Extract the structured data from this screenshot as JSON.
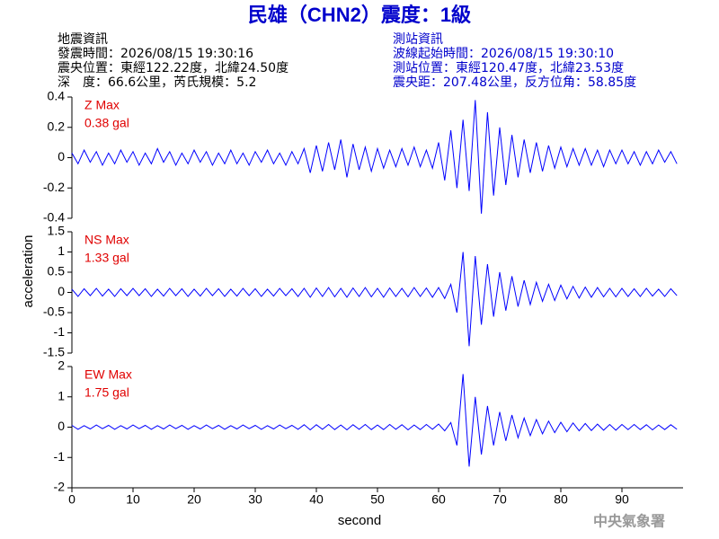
{
  "header": {
    "title": "民雄（CHN2）震度：1級",
    "quake": [
      "地震資訊",
      "發震時間：2026/08/15 19:30:16",
      "震央位置：東經122.22度，北緯24.50度",
      "深　度：66.6公里，芮氏規模：5.2"
    ],
    "station": [
      "測站資訊",
      "波線起始時間：2026/08/15 19:30:10",
      "測站位置：東經120.47度，北緯23.53度",
      "震央距：207.48公里，反方位角：58.85度"
    ],
    "footer": "中央氣象署"
  },
  "chart_data": {
    "type": "line",
    "xlabel": "second",
    "ylabel": "acceleration",
    "xlim": [
      0,
      100
    ],
    "xticks": [
      0,
      10,
      20,
      30,
      40,
      50,
      60,
      70,
      80,
      90
    ],
    "x": [
      0,
      1,
      2,
      3,
      4,
      5,
      6,
      7,
      8,
      9,
      10,
      11,
      12,
      13,
      14,
      15,
      16,
      17,
      18,
      19,
      20,
      21,
      22,
      23,
      24,
      25,
      26,
      27,
      28,
      29,
      30,
      31,
      32,
      33,
      34,
      35,
      36,
      37,
      38,
      39,
      40,
      41,
      42,
      43,
      44,
      45,
      46,
      47,
      48,
      49,
      50,
      51,
      52,
      53,
      54,
      55,
      56,
      57,
      58,
      59,
      60,
      61,
      62,
      63,
      64,
      65,
      66,
      67,
      68,
      69,
      70,
      71,
      72,
      73,
      74,
      75,
      76,
      77,
      78,
      79,
      80,
      81,
      82,
      83,
      84,
      85,
      86,
      87,
      88,
      89,
      90,
      91,
      92,
      93,
      94,
      95,
      96,
      97,
      98,
      99
    ],
    "series": [
      {
        "name": "Z Max",
        "label": "0.38 gal",
        "color": "#0000ff",
        "ylim": [
          -0.4,
          0.4
        ],
        "yticks": [
          -0.4,
          -0.2,
          0,
          0.2,
          0.4
        ],
        "values": [
          0.03,
          -0.04,
          0.05,
          -0.03,
          0.04,
          -0.05,
          0.03,
          -0.04,
          0.05,
          -0.03,
          0.04,
          -0.05,
          0.03,
          -0.04,
          0.06,
          -0.03,
          0.04,
          -0.05,
          0.03,
          -0.04,
          0.05,
          -0.03,
          0.04,
          -0.05,
          0.03,
          -0.04,
          0.05,
          -0.04,
          0.03,
          -0.05,
          0.04,
          -0.03,
          0.05,
          -0.04,
          0.03,
          -0.05,
          0.04,
          -0.04,
          0.06,
          -0.1,
          0.08,
          -0.09,
          0.1,
          -0.08,
          0.12,
          -0.13,
          0.09,
          -0.08,
          0.07,
          -0.09,
          0.06,
          -0.07,
          0.05,
          -0.06,
          0.06,
          -0.05,
          0.07,
          -0.06,
          0.05,
          -0.07,
          0.1,
          -0.15,
          0.18,
          -0.2,
          0.25,
          -0.22,
          0.38,
          -0.37,
          0.3,
          -0.25,
          0.2,
          -0.18,
          0.15,
          -0.13,
          0.12,
          -0.1,
          0.1,
          -0.09,
          0.08,
          -0.07,
          0.07,
          -0.06,
          0.06,
          -0.05,
          0.06,
          -0.05,
          0.05,
          -0.06,
          0.05,
          -0.04,
          0.05,
          -0.04,
          0.04,
          -0.05,
          0.04,
          -0.04,
          0.05,
          -0.03,
          0.04,
          -0.04
        ]
      },
      {
        "name": "NS Max",
        "label": "1.33 gal",
        "color": "#0000ff",
        "ylim": [
          -1.5,
          1.5
        ],
        "yticks": [
          -1.5,
          -1,
          -0.5,
          0,
          0.5,
          1,
          1.5
        ],
        "values": [
          0.08,
          -0.1,
          0.09,
          -0.08,
          0.1,
          -0.09,
          0.08,
          -0.1,
          0.09,
          -0.08,
          0.1,
          -0.08,
          0.09,
          -0.1,
          0.08,
          -0.09,
          0.1,
          -0.08,
          0.09,
          -0.1,
          0.08,
          -0.09,
          0.1,
          -0.08,
          0.09,
          -0.1,
          0.08,
          -0.09,
          0.1,
          -0.08,
          0.09,
          -0.1,
          0.08,
          -0.09,
          0.1,
          -0.08,
          0.09,
          -0.1,
          0.1,
          -0.12,
          0.11,
          -0.1,
          0.12,
          -0.11,
          0.1,
          -0.12,
          0.11,
          -0.1,
          0.12,
          -0.11,
          0.1,
          -0.12,
          0.11,
          -0.1,
          0.1,
          -0.11,
          0.12,
          -0.1,
          0.11,
          -0.12,
          0.12,
          -0.15,
          0.2,
          -0.5,
          1.0,
          -1.33,
          0.9,
          -0.8,
          0.7,
          -0.6,
          0.5,
          -0.45,
          0.4,
          -0.35,
          0.3,
          -0.3,
          0.25,
          -0.22,
          0.2,
          -0.2,
          0.18,
          -0.16,
          0.15,
          -0.14,
          0.13,
          -0.12,
          0.12,
          -0.11,
          0.1,
          -0.11,
          0.1,
          -0.1,
          0.09,
          -0.1,
          0.1,
          -0.09,
          0.08,
          -0.1,
          0.09,
          -0.08
        ]
      },
      {
        "name": "EW Max",
        "label": "1.75 gal",
        "color": "#0000ff",
        "ylim": [
          -2,
          2
        ],
        "yticks": [
          -2,
          -1,
          0,
          1,
          2
        ],
        "values": [
          0.06,
          -0.07,
          0.05,
          -0.06,
          0.07,
          -0.05,
          0.06,
          -0.07,
          0.05,
          -0.06,
          0.07,
          -0.05,
          0.06,
          -0.07,
          0.05,
          -0.06,
          0.07,
          -0.05,
          0.06,
          -0.07,
          0.05,
          -0.06,
          0.07,
          -0.05,
          0.06,
          -0.07,
          0.05,
          -0.06,
          0.07,
          -0.05,
          0.06,
          -0.07,
          0.05,
          -0.06,
          0.07,
          -0.05,
          0.06,
          -0.07,
          0.08,
          -0.09,
          0.08,
          -0.07,
          0.09,
          -0.08,
          0.07,
          -0.09,
          0.08,
          -0.07,
          0.09,
          -0.08,
          0.07,
          -0.08,
          0.09,
          -0.07,
          0.08,
          -0.09,
          0.07,
          -0.08,
          0.09,
          -0.07,
          0.1,
          -0.12,
          0.15,
          -0.6,
          1.75,
          -1.3,
          1.0,
          -0.9,
          0.7,
          -0.6,
          0.5,
          -0.45,
          0.4,
          -0.35,
          0.3,
          -0.28,
          0.25,
          -0.22,
          0.2,
          -0.18,
          0.16,
          -0.15,
          0.14,
          -0.12,
          0.12,
          -0.11,
          0.1,
          -0.1,
          0.09,
          -0.1,
          0.09,
          -0.08,
          0.09,
          -0.08,
          0.08,
          -0.09,
          0.07,
          -0.08,
          0.08,
          -0.07
        ]
      }
    ]
  }
}
